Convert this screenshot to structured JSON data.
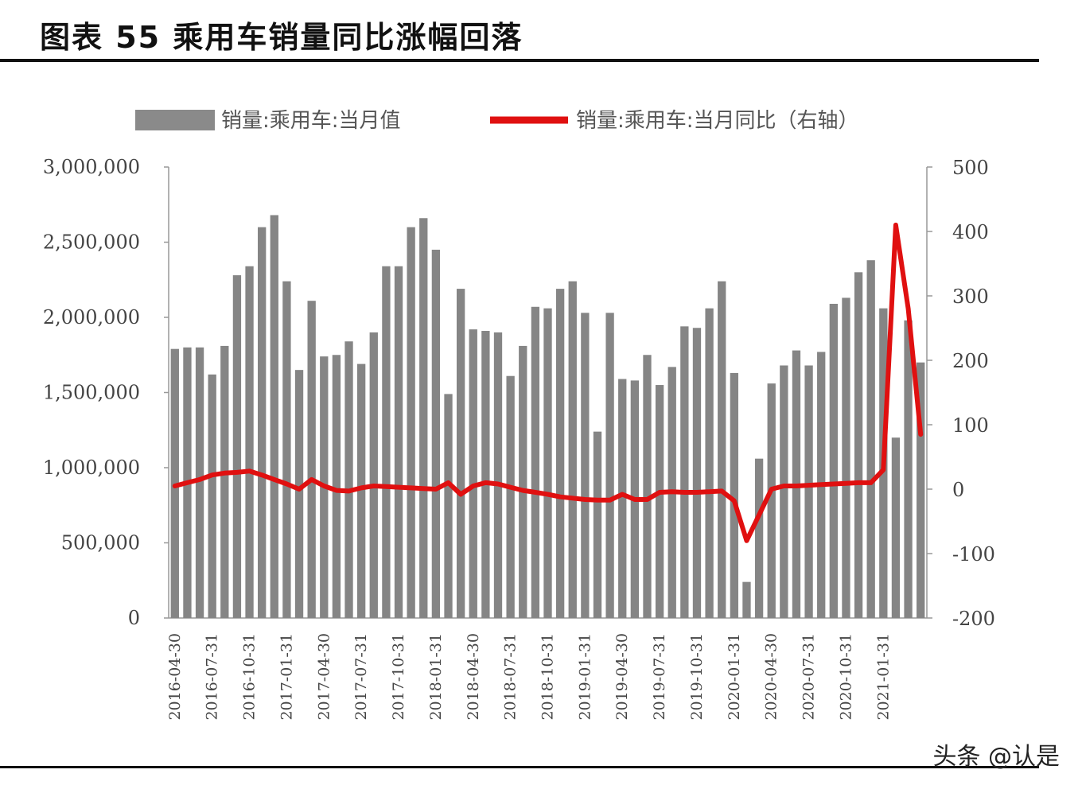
{
  "header": {
    "title": "图表 55  乘用车销量同比涨幅回落"
  },
  "watermark": "头条 @认是",
  "chart_data": {
    "type": "bar",
    "title": "图表 55  乘用车销量同比涨幅回落",
    "legend": {
      "placement": "top",
      "items": [
        {
          "label": "销量:乘用车:当月值",
          "color": "#8a8a8a",
          "kind": "bar"
        },
        {
          "label": "销量:乘用车:当月同比（右轴）",
          "color": "#e01010",
          "kind": "line"
        }
      ]
    },
    "y_left": {
      "ylim": [
        0,
        3000000
      ],
      "ticks": [
        0,
        500000,
        1000000,
        1500000,
        2000000,
        2500000,
        3000000
      ],
      "tick_labels": [
        "0",
        "500,000",
        "1,000,000",
        "1,500,000",
        "2,000,000",
        "2,500,000",
        "3,000,000"
      ]
    },
    "y_right": {
      "ylim": [
        -200,
        500
      ],
      "ticks": [
        -200,
        -100,
        0,
        100,
        200,
        300,
        400,
        500
      ],
      "tick_labels": [
        "-200",
        "-100",
        "0",
        "100",
        "200",
        "300",
        "400",
        "500"
      ]
    },
    "x_tick_labels": [
      "2016-04-30",
      "2016-07-31",
      "2016-10-31",
      "2017-01-31",
      "2017-04-30",
      "2017-07-31",
      "2017-10-31",
      "2018-01-31",
      "2018-04-30",
      "2018-07-31",
      "2018-10-31",
      "2019-01-31",
      "2019-04-30",
      "2019-07-31",
      "2019-10-31",
      "2020-01-31",
      "2020-04-30",
      "2020-07-31",
      "2020-10-31",
      "2021-01-31"
    ],
    "categories": [
      "2016-04",
      "2016-05",
      "2016-06",
      "2016-07",
      "2016-08",
      "2016-09",
      "2016-10",
      "2016-11",
      "2016-12",
      "2017-01",
      "2017-02",
      "2017-03",
      "2017-04",
      "2017-05",
      "2017-06",
      "2017-07",
      "2017-08",
      "2017-09",
      "2017-10",
      "2017-11",
      "2017-12",
      "2018-01",
      "2018-02",
      "2018-03",
      "2018-04",
      "2018-05",
      "2018-06",
      "2018-07",
      "2018-08",
      "2018-09",
      "2018-10",
      "2018-11",
      "2018-12",
      "2019-01",
      "2019-02",
      "2019-03",
      "2019-04",
      "2019-05",
      "2019-06",
      "2019-07",
      "2019-08",
      "2019-09",
      "2019-10",
      "2019-11",
      "2019-12",
      "2020-01",
      "2020-02",
      "2020-03",
      "2020-04",
      "2020-05",
      "2020-06",
      "2020-07",
      "2020-08",
      "2020-09",
      "2020-10",
      "2020-11",
      "2020-12",
      "2021-01",
      "2021-02",
      "2021-03",
      "2021-04"
    ],
    "series": [
      {
        "name": "销量:乘用车:当月值",
        "type": "bar",
        "axis": "left",
        "values": [
          1790000,
          1800000,
          1800000,
          1620000,
          1810000,
          2280000,
          2340000,
          2600000,
          2680000,
          2240000,
          1650000,
          2110000,
          1740000,
          1750000,
          1840000,
          1690000,
          1900000,
          2340000,
          2340000,
          2600000,
          2660000,
          2450000,
          1490000,
          2190000,
          1920000,
          1910000,
          1900000,
          1610000,
          1810000,
          2070000,
          2060000,
          2190000,
          2240000,
          2030000,
          1240000,
          2030000,
          1590000,
          1580000,
          1750000,
          1550000,
          1670000,
          1940000,
          1930000,
          2060000,
          2240000,
          1630000,
          240000,
          1060000,
          1560000,
          1680000,
          1780000,
          1680000,
          1770000,
          2090000,
          2130000,
          2300000,
          2380000,
          2060000,
          1200000,
          1980000,
          1700000
        ]
      },
      {
        "name": "销量:乘用车:当月同比（右轴）",
        "type": "line",
        "axis": "right",
        "values": [
          5,
          10,
          15,
          22,
          25,
          26,
          28,
          22,
          15,
          8,
          0,
          15,
          5,
          -2,
          -3,
          2,
          5,
          4,
          3,
          2,
          1,
          0,
          10,
          -8,
          5,
          10,
          8,
          3,
          -2,
          -5,
          -8,
          -12,
          -14,
          -16,
          -17,
          -17,
          -8,
          -16,
          -16,
          -5,
          -4,
          -5,
          -5,
          -4,
          -3,
          -18,
          -80,
          -40,
          0,
          5,
          5,
          6,
          7,
          8,
          9,
          10,
          10,
          30,
          410,
          280,
          85
        ]
      }
    ]
  }
}
